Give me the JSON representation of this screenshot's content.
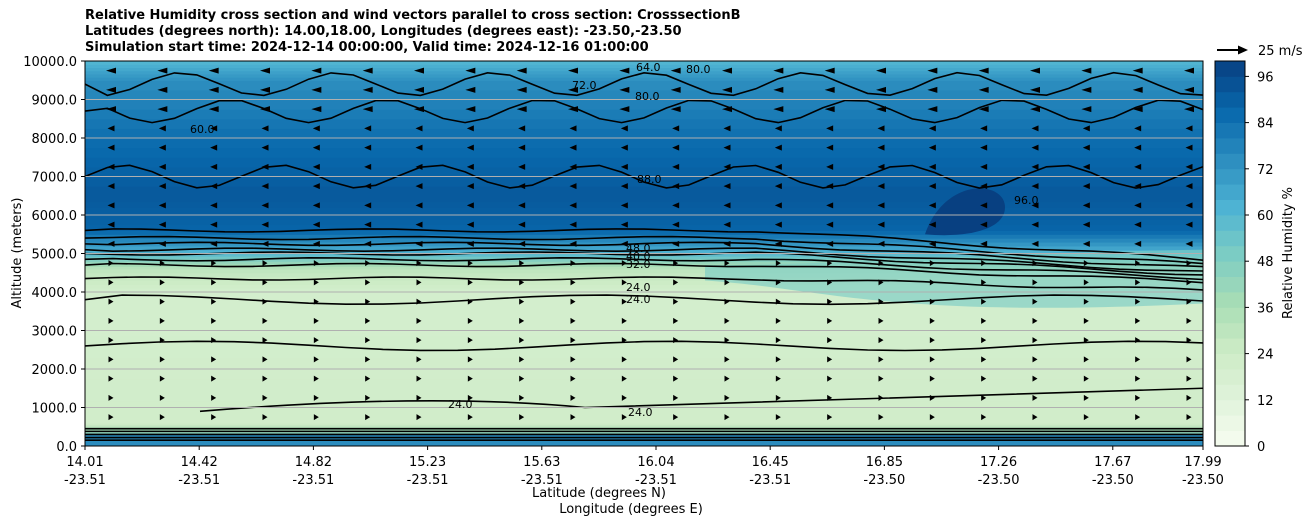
{
  "title_lines": [
    "Relative Humidity cross section and wind vectors parallel to cross section: CrosssectionB",
    "Latitudes (degrees north): 14.00,18.00, Longitudes (degrees east): -23.50,-23.50",
    "Simulation start time: 2024-12-14 00:00:00, Valid time: 2024-12-16 01:00:00"
  ],
  "chart_data": {
    "type": "heatmap",
    "ylabel": "Altitude (meters)",
    "xlabel_lines": [
      "Latitude (degrees N)",
      "Longitude (degrees E)"
    ],
    "ylim": [
      0,
      10000
    ],
    "y_ticks": [
      "0.0",
      "1000.0",
      "2000.0",
      "3000.0",
      "4000.0",
      "5000.0",
      "6000.0",
      "7000.0",
      "8000.0",
      "9000.0",
      "10000.0"
    ],
    "x_ticks": [
      {
        "lat": "14.01",
        "lon": "-23.51"
      },
      {
        "lat": "14.42",
        "lon": "-23.51"
      },
      {
        "lat": "14.82",
        "lon": "-23.51"
      },
      {
        "lat": "15.23",
        "lon": "-23.51"
      },
      {
        "lat": "15.63",
        "lon": "-23.51"
      },
      {
        "lat": "16.04",
        "lon": "-23.51"
      },
      {
        "lat": "16.45",
        "lon": "-23.51"
      },
      {
        "lat": "16.85",
        "lon": "-23.50"
      },
      {
        "lat": "17.26",
        "lon": "-23.50"
      },
      {
        "lat": "17.67",
        "lon": "-23.50"
      },
      {
        "lat": "17.99",
        "lon": "-23.50"
      }
    ],
    "colorbar": {
      "label": "Relative Humidity %",
      "range": [
        0,
        100
      ],
      "ticks": [
        "0",
        "12",
        "24",
        "36",
        "48",
        "60",
        "72",
        "84",
        "96"
      ],
      "levels": 25
    },
    "quiver_key": "25 m/s",
    "contour_labels": [
      "24.0",
      "32.0",
      "40.0",
      "48.0",
      "56.0",
      "64.0",
      "72.0",
      "80.0",
      "88.0",
      "96.0"
    ],
    "grid": "horizontal",
    "description_note": "",
    "humidity_profile": [
      {
        "altitude": 0,
        "rh": 76
      },
      {
        "altitude": 300,
        "rh": 50
      },
      {
        "altitude": 600,
        "rh": 22
      },
      {
        "altitude": 4000,
        "rh": 20
      },
      {
        "altitude": 4600,
        "rh": 30
      },
      {
        "altitude": 5000,
        "rh": 60
      },
      {
        "altitude": 5600,
        "rh": 88
      },
      {
        "altitude": 6500,
        "rh": 92
      },
      {
        "altitude": 8000,
        "rh": 85
      },
      {
        "altitude": 9500,
        "rh": 74
      },
      {
        "altitude": 10000,
        "rh": 60
      }
    ]
  },
  "colors": {
    "low": "#eaf6e2",
    "mid": "#7bcbc4",
    "high": "#084081"
  }
}
